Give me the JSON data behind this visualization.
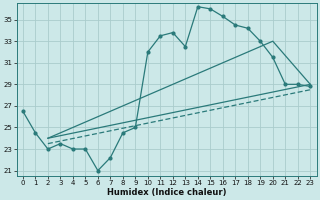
{
  "xlabel": "Humidex (Indice chaleur)",
  "bg_color": "#cce8e8",
  "grid_color": "#aacccc",
  "line_color": "#2a7a7a",
  "xlim": [
    -0.5,
    23.5
  ],
  "ylim": [
    20.5,
    36.5
  ],
  "yticks": [
    21,
    23,
    25,
    27,
    29,
    31,
    33,
    35
  ],
  "xticks": [
    0,
    1,
    2,
    3,
    4,
    5,
    6,
    7,
    8,
    9,
    10,
    11,
    12,
    13,
    14,
    15,
    16,
    17,
    18,
    19,
    20,
    21,
    22,
    23
  ],
  "main_x": [
    0,
    1,
    2,
    3,
    4,
    5,
    6,
    7,
    8,
    9,
    10,
    11,
    12,
    13,
    14,
    15,
    16,
    17,
    18,
    19,
    20,
    21,
    22,
    23
  ],
  "main_y": [
    26.5,
    24.5,
    23.0,
    23.5,
    23.0,
    23.0,
    21.0,
    22.2,
    24.5,
    25.0,
    32.0,
    33.5,
    33.8,
    32.5,
    36.2,
    36.0,
    35.3,
    34.5,
    34.2,
    33.0,
    31.5,
    29.0,
    29.0,
    28.8
  ],
  "trend1_x": [
    2,
    20,
    23
  ],
  "trend1_y": [
    24.0,
    33.0,
    29.0
  ],
  "trend2_x": [
    2,
    23
  ],
  "trend2_y": [
    24.0,
    29.0
  ],
  "trend3_x": [
    2,
    23
  ],
  "trend3_y": [
    23.5,
    28.5
  ]
}
